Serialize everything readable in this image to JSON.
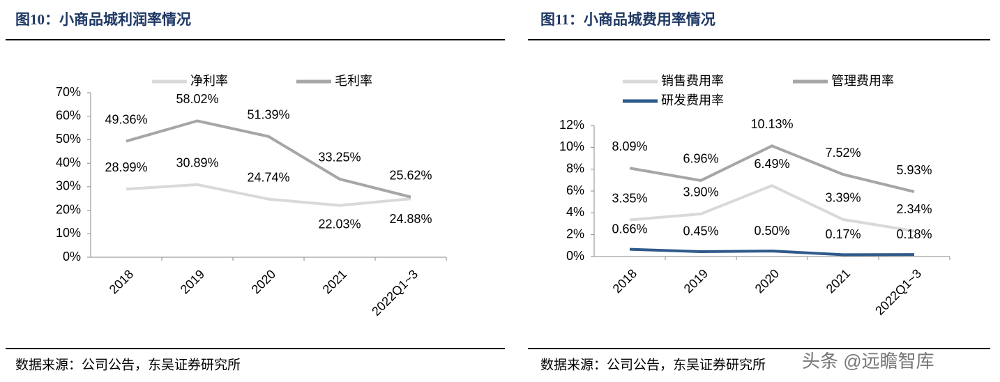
{
  "chart_data": [
    {
      "type": "line",
      "title": "图10：小商品城利润率情况",
      "source": "数据来源：公司公告，东吴证券研究所",
      "categories": [
        "2018",
        "2019",
        "2020",
        "2021",
        "2022Q1~3"
      ],
      "series": [
        {
          "name": "净利率",
          "color": "#d9d9d9",
          "values": [
            28.99,
            30.89,
            24.74,
            22.03,
            24.88
          ],
          "value_labels": [
            "28.99%",
            "30.89%",
            "24.74%",
            "22.03%",
            "24.88%"
          ]
        },
        {
          "name": "毛利率",
          "color": "#a6a6a6",
          "values": [
            49.36,
            58.02,
            51.39,
            33.25,
            25.62
          ],
          "value_labels": [
            "49.36%",
            "58.02%",
            "51.39%",
            "33.25%",
            "25.62%"
          ]
        }
      ],
      "ylim": [
        0,
        70
      ],
      "yticks": [
        {
          "value": 0,
          "label": "0%"
        },
        {
          "value": 10,
          "label": "10%"
        },
        {
          "value": 20,
          "label": "20%"
        },
        {
          "value": 30,
          "label": "30%"
        },
        {
          "value": 40,
          "label": "40%"
        },
        {
          "value": 50,
          "label": "50%"
        },
        {
          "value": 60,
          "label": "60%"
        },
        {
          "value": 70,
          "label": "70%"
        }
      ]
    },
    {
      "type": "line",
      "title": "图11：小商品城费用率情况",
      "source": "数据来源：公司公告，东吴证券研究所",
      "categories": [
        "2018",
        "2019",
        "2020",
        "2021",
        "2022Q1~3"
      ],
      "series": [
        {
          "name": "销售费用率",
          "color": "#d9d9d9",
          "values": [
            3.35,
            3.9,
            6.49,
            3.39,
            2.34
          ],
          "value_labels": [
            "3.35%",
            "3.90%",
            "6.49%",
            "3.39%",
            "2.34%"
          ]
        },
        {
          "name": "管理费用率",
          "color": "#a6a6a6",
          "values": [
            8.09,
            6.96,
            10.13,
            7.52,
            5.93
          ],
          "value_labels": [
            "8.09%",
            "6.96%",
            "10.13%",
            "7.52%",
            "5.93%"
          ]
        },
        {
          "name": "研发费用率",
          "color": "#2f5a8a",
          "values": [
            0.66,
            0.45,
            0.5,
            0.17,
            0.18
          ],
          "value_labels": [
            "0.66%",
            "0.45%",
            "0.50%",
            "0.17%",
            "0.18%"
          ]
        }
      ],
      "ylim": [
        0,
        12
      ],
      "yticks": [
        {
          "value": 0,
          "label": "0%"
        },
        {
          "value": 2,
          "label": "2%"
        },
        {
          "value": 4,
          "label": "4%"
        },
        {
          "value": 6,
          "label": "6%"
        },
        {
          "value": 8,
          "label": "8%"
        },
        {
          "value": 10,
          "label": "10%"
        },
        {
          "value": 12,
          "label": "12%"
        }
      ]
    }
  ],
  "watermark": "头条 @远瞻智库"
}
